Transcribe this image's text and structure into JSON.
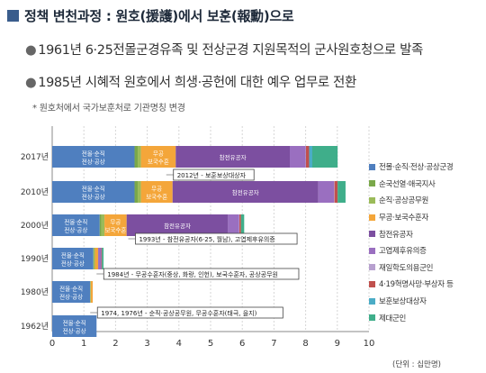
{
  "header": {
    "title": "정책 변천과정 : 원호(援護)에서 보훈(報勳)으로",
    "bullet1": "1961년 6·25전몰군경유족 및 전상군경 지원목적의 군사원호청으로 발족",
    "bullet2": "1985년 시혜적 원호에서 희생·공헌에 대한 예우 업무로 전환",
    "note": "* 원호처에서 국가보훈처로 기관명칭 변경",
    "bullet_mark": "●"
  },
  "chart_data": {
    "type": "bar",
    "orientation": "horizontal",
    "stacked": true,
    "categories": [
      "1962년",
      "1980년",
      "1990년",
      "2000년",
      "2010년",
      "2017년"
    ],
    "series": [
      {
        "name": "전몰·순직·전상·공상군경",
        "color": "#4f7fbf",
        "values": [
          1.4,
          1.2,
          1.3,
          1.5,
          2.6,
          2.6
        ]
      },
      {
        "name": "순국선열·애국지사",
        "color": "#7aa84a",
        "values": [
          0,
          0,
          0,
          0.05,
          0.1,
          0.1
        ]
      },
      {
        "name": "순직·공상공무원",
        "color": "#9bbb59",
        "values": [
          0,
          0.02,
          0.05,
          0.1,
          0.1,
          0.1
        ]
      },
      {
        "name": "무공·보국수훈자",
        "color": "#f4a63a",
        "values": [
          0,
          0.06,
          0.1,
          0.7,
          1.0,
          1.1
        ]
      },
      {
        "name": "참전유공자",
        "color": "#7c4fa0",
        "values": [
          0,
          0,
          0,
          3.2,
          4.6,
          3.6
        ]
      },
      {
        "name": "고엽제후유의증",
        "color": "#9a6fc0",
        "values": [
          0,
          0,
          0.1,
          0.35,
          0.5,
          0.5
        ]
      },
      {
        "name": "재일학도의용군인",
        "color": "#b7a0cf",
        "values": [
          0,
          0,
          0,
          0.01,
          0.01,
          0.01
        ]
      },
      {
        "name": "4·19혁명사망·부상자 등",
        "color": "#c0504d",
        "values": [
          0,
          0,
          0.02,
          0.05,
          0.1,
          0.1
        ]
      },
      {
        "name": "보훈보상대상자",
        "color": "#4bacc6",
        "values": [
          0,
          0,
          0,
          0,
          0,
          0.1
        ]
      },
      {
        "name": "제대군인",
        "color": "#3fae8a",
        "values": [
          0,
          0,
          0.05,
          0.1,
          0.25,
          0.8
        ]
      }
    ],
    "bar_labels": [
      {
        "category": "1962년",
        "series": "전몰·순직·전상·공상군경",
        "text": "전몰·순직\n전상·공상"
      },
      {
        "category": "1980년",
        "series": "전몰·순직·전상·공상군경",
        "text": "전몰·순직\n전상·공상"
      },
      {
        "category": "1990년",
        "series": "전몰·순직·전상·공상군경",
        "text": "전몰·순직\n전상·공상"
      },
      {
        "category": "2000년",
        "series": "전몰·순직·전상·공상군경",
        "text": "전몰·순직\n전상·공상"
      },
      {
        "category": "2010년",
        "series": "전몰·순직·전상·공상군경",
        "text": "전몰·순직\n전상·공상"
      },
      {
        "category": "2017년",
        "series": "전몰·순직·전상·공상군경",
        "text": "전몰·순직\n전상·공상"
      },
      {
        "category": "2000년",
        "series": "무공·보국수훈자",
        "text": "무공\n보국수훈"
      },
      {
        "category": "2010년",
        "series": "무공·보국수훈자",
        "text": "무공\n보국수훈"
      },
      {
        "category": "2017년",
        "series": "무공·보국수훈자",
        "text": "무공\n보국수훈"
      },
      {
        "category": "2000년",
        "series": "참전유공자",
        "text": "참전유공자"
      },
      {
        "category": "2010년",
        "series": "참전유공자",
        "text": "참전유공자"
      },
      {
        "category": "2017년",
        "series": "참전유공자",
        "text": "참전유공자"
      }
    ],
    "annotations": [
      {
        "text": "2012년 - 보훈보상대상자",
        "category": "2017년",
        "x": 3.6
      },
      {
        "text": "1993년 - 참전유공자(6·25, 월남), 고엽제후유의증",
        "category": "1990년",
        "x": 2.4
      },
      {
        "text": "1984년 - 무공수훈자(중상, 화랑, 인헌), 보국수훈자, 공상공무원",
        "category": "1980년",
        "x": 1.4
      },
      {
        "text": "1974, 1976년 - 순직·공상공무원, 무공수훈자(태극, 을지)",
        "category": "1980년",
        "x": 1.2
      }
    ],
    "x_ticks": [
      0,
      1,
      2,
      3,
      4,
      5,
      6,
      7,
      8,
      9,
      10
    ],
    "xlim": [
      0,
      10
    ],
    "xlabel": "(단위 : 십만명)",
    "grid": true,
    "legend_position": "right"
  }
}
